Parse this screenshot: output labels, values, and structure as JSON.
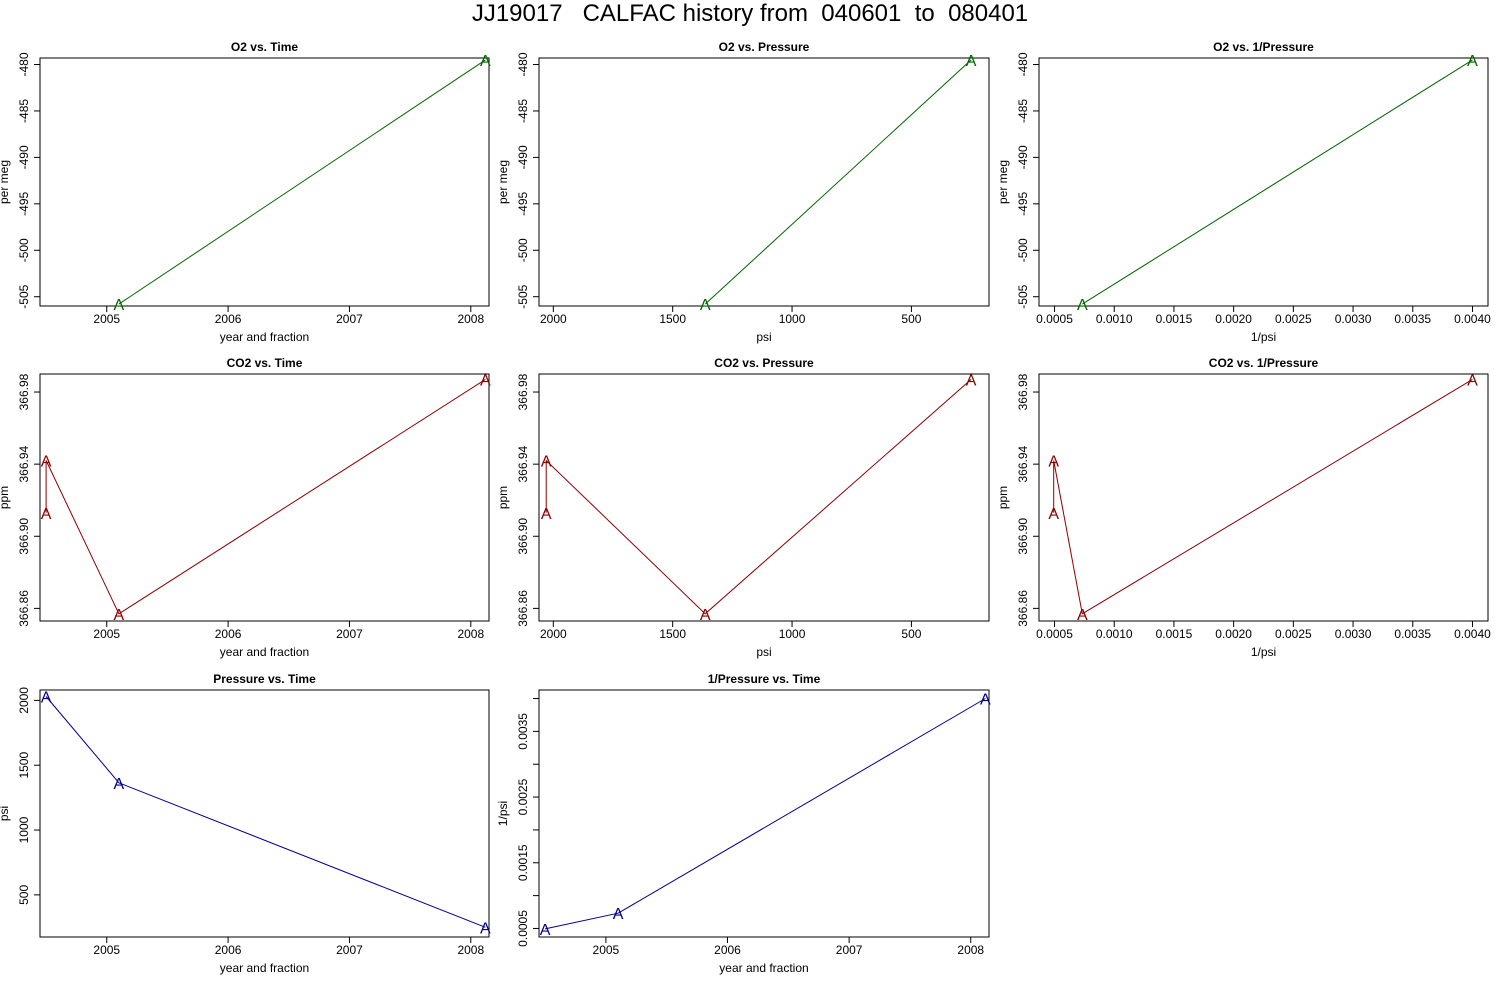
{
  "title": "JJ19017   CALFAC history from  040601  to  080401",
  "chart_data": [
    {
      "type": "line",
      "title": "O2 vs. Time",
      "xlabel": "year and fraction",
      "ylabel": "per meg",
      "xlim": [
        2004.45,
        2008.15
      ],
      "ylim": [
        -506,
        -479.3
      ],
      "xticks": [
        2005,
        2006,
        2007,
        2008
      ],
      "xtick_labels": [
        "2005",
        "2006",
        "2007",
        "2008"
      ],
      "yticks": [
        -505,
        -500,
        -495,
        -490,
        -485,
        -480
      ],
      "ytick_labels": [
        "-505",
        "-500",
        "-495",
        "-490",
        "-485",
        "-480"
      ],
      "color": "#006400",
      "marker": "A",
      "x": [
        2005.1,
        2008.12
      ],
      "y": [
        -505.8,
        -479.5
      ]
    },
    {
      "type": "line",
      "title": "O2 vs. Pressure",
      "xlabel": "psi",
      "ylabel": "per meg",
      "xlim": [
        2060,
        175
      ],
      "ylim": [
        -506,
        -479.3
      ],
      "xticks": [
        2000,
        1500,
        1000,
        500
      ],
      "xtick_labels": [
        "2000",
        "1500",
        "1000",
        "500"
      ],
      "yticks": [
        -505,
        -500,
        -495,
        -490,
        -485,
        -480
      ],
      "ytick_labels": [
        "-505",
        "-500",
        "-495",
        "-490",
        "-485",
        "-480"
      ],
      "color": "#006400",
      "marker": "A",
      "x": [
        1364,
        250
      ],
      "y": [
        -505.8,
        -479.5
      ]
    },
    {
      "type": "line",
      "title": "O2 vs. 1/Pressure",
      "xlabel": "1/psi",
      "ylabel": "per meg",
      "xlim": [
        0.00037,
        0.00413
      ],
      "ylim": [
        -506,
        -479.3
      ],
      "xticks": [
        0.0005,
        0.001,
        0.0015,
        0.002,
        0.0025,
        0.003,
        0.0035,
        0.004
      ],
      "xtick_labels": [
        "0.0005",
        "0.0010",
        "0.0015",
        "0.0020",
        "0.0025",
        "0.0030",
        "0.0035",
        "0.0040"
      ],
      "yticks": [
        -505,
        -500,
        -495,
        -490,
        -485,
        -480
      ],
      "ytick_labels": [
        "-505",
        "-500",
        "-495",
        "-490",
        "-485",
        "-480"
      ],
      "color": "#006400",
      "marker": "A",
      "x": [
        0.000733,
        0.004
      ],
      "y": [
        -505.8,
        -479.5
      ]
    },
    {
      "type": "line",
      "title": "CO2 vs. Time",
      "xlabel": "year and fraction",
      "ylabel": "ppm",
      "xlim": [
        2004.45,
        2008.15
      ],
      "ylim": [
        366.853,
        366.99
      ],
      "xticks": [
        2005,
        2006,
        2007,
        2008
      ],
      "xtick_labels": [
        "2005",
        "2006",
        "2007",
        "2008"
      ],
      "yticks": [
        366.86,
        366.9,
        366.94,
        366.98
      ],
      "ytick_labels": [
        "366.86",
        "366.90",
        "366.94",
        "366.98"
      ],
      "color": "#8b0000",
      "marker": "A",
      "x": [
        2004.5,
        2004.5,
        2005.1,
        2008.12
      ],
      "y": [
        366.913,
        366.942,
        366.857,
        366.987
      ]
    },
    {
      "type": "line",
      "title": "CO2 vs. Pressure",
      "xlabel": "psi",
      "ylabel": "ppm",
      "xlim": [
        2060,
        175
      ],
      "ylim": [
        366.853,
        366.99
      ],
      "xticks": [
        2000,
        1500,
        1000,
        500
      ],
      "xtick_labels": [
        "2000",
        "1500",
        "1000",
        "500"
      ],
      "yticks": [
        366.86,
        366.9,
        366.94,
        366.98
      ],
      "ytick_labels": [
        "366.86",
        "366.90",
        "366.94",
        "366.98"
      ],
      "color": "#8b0000",
      "marker": "A",
      "x": [
        2030,
        2030,
        1364,
        250
      ],
      "y": [
        366.913,
        366.942,
        366.857,
        366.987
      ]
    },
    {
      "type": "line",
      "title": "CO2 vs. 1/Pressure",
      "xlabel": "1/psi",
      "ylabel": "ppm",
      "xlim": [
        0.00037,
        0.00413
      ],
      "ylim": [
        366.853,
        366.99
      ],
      "xticks": [
        0.0005,
        0.001,
        0.0015,
        0.002,
        0.0025,
        0.003,
        0.0035,
        0.004
      ],
      "xtick_labels": [
        "0.0005",
        "0.0010",
        "0.0015",
        "0.0020",
        "0.0025",
        "0.0030",
        "0.0035",
        "0.0040"
      ],
      "yticks": [
        366.86,
        366.9,
        366.94,
        366.98
      ],
      "ytick_labels": [
        "366.86",
        "366.90",
        "366.94",
        "366.98"
      ],
      "color": "#8b0000",
      "marker": "A",
      "x": [
        0.000493,
        0.000493,
        0.000733,
        0.004
      ],
      "y": [
        366.913,
        366.942,
        366.857,
        366.987
      ]
    },
    {
      "type": "line",
      "title": "Pressure vs. Time",
      "xlabel": "year and fraction",
      "ylabel": "psi",
      "xlim": [
        2004.45,
        2008.15
      ],
      "ylim": [
        175,
        2080
      ],
      "xticks": [
        2005,
        2006,
        2007,
        2008
      ],
      "xtick_labels": [
        "2005",
        "2006",
        "2007",
        "2008"
      ],
      "yticks": [
        500,
        1000,
        1500,
        2000
      ],
      "ytick_labels": [
        "500",
        "1000",
        "1500",
        "2000"
      ],
      "color": "#00008b",
      "marker": "A",
      "x": [
        2004.5,
        2005.1,
        2008.12
      ],
      "y": [
        2030,
        1364,
        250
      ]
    },
    {
      "type": "line",
      "title": "1/Pressure vs. Time",
      "xlabel": "year and fraction",
      "ylabel": "1/psi",
      "xlim": [
        2004.45,
        2008.15
      ],
      "ylim": [
        0.00037,
        0.00413
      ],
      "xticks": [
        2005,
        2006,
        2007,
        2008
      ],
      "xtick_labels": [
        "2005",
        "2006",
        "2007",
        "2008"
      ],
      "yticks": [
        0.0005,
        0.0015,
        0.0025,
        0.0035
      ],
      "ytick_labels": [
        "0.0005",
        "0.0015",
        "0.0025",
        "0.0035"
      ],
      "minor_yticks": [
        0.001,
        0.002,
        0.003,
        0.004
      ],
      "color": "#00008b",
      "marker": "A",
      "x": [
        2004.5,
        2005.1,
        2008.12
      ],
      "y": [
        0.000493,
        0.000733,
        0.004
      ]
    }
  ]
}
